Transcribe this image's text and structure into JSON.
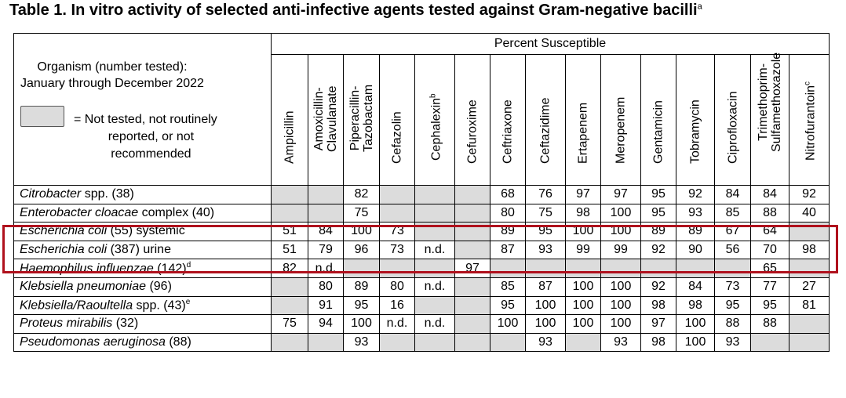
{
  "title": "Table 1.  In vitro activity of selected anti-infective agents tested against Gram-negative bacilli",
  "title_sup": "a",
  "header": {
    "percent_susceptible": "Percent Susceptible",
    "organism_line1": "Organism (number tested):",
    "organism_line2": "January through December 2022",
    "legend_line1": "= Not tested, not routinely",
    "legend_line2": "reported, or not",
    "legend_line3": "recommended"
  },
  "drugs": [
    {
      "line1": "Ampicillin"
    },
    {
      "line1": "Amoxicillin-",
      "line2": "Clavulanate"
    },
    {
      "line1": "Piperacillin-",
      "line2": "Tazobactam"
    },
    {
      "line1": "Cefazolin"
    },
    {
      "line1": "Cephalexin",
      "sup": "b"
    },
    {
      "line1": "Cefuroxime"
    },
    {
      "line1": "Ceftriaxone"
    },
    {
      "line1": "Ceftazidime"
    },
    {
      "line1": "Ertapenem"
    },
    {
      "line1": "Meropenem"
    },
    {
      "line1": "Gentamicin"
    },
    {
      "line1": "Tobramycin"
    },
    {
      "line1": "Ciprofloxacin"
    },
    {
      "line1": "Trimethoprim-",
      "line2": "Sulfamethoxazole"
    },
    {
      "line1": "Nitrofurantoin",
      "sup": "c"
    }
  ],
  "rows": [
    {
      "genus": "Citrobacter",
      "rest": " spp. (38)",
      "sup": "",
      "values": [
        "",
        "",
        "82",
        "",
        "",
        "",
        "68",
        "76",
        "97",
        "97",
        "95",
        "92",
        "84",
        "84",
        "92"
      ]
    },
    {
      "genus": "Enterobacter cloacae",
      "rest": " complex (40)",
      "sup": "",
      "values": [
        "",
        "",
        "75",
        "",
        "",
        "",
        "80",
        "75",
        "98",
        "100",
        "95",
        "93",
        "85",
        "88",
        "40"
      ]
    },
    {
      "genus": "Escherichia coli",
      "rest": " (55) systemic",
      "sup": "",
      "values": [
        "51",
        "84",
        "100",
        "73",
        "",
        "",
        "89",
        "95",
        "100",
        "100",
        "89",
        "89",
        "67",
        "64",
        ""
      ]
    },
    {
      "genus": "Escherichia coli",
      "rest": " (387) urine",
      "sup": "",
      "values": [
        "51",
        "79",
        "96",
        "73",
        "n.d.",
        "",
        "87",
        "93",
        "99",
        "99",
        "92",
        "90",
        "56",
        "70",
        "98"
      ]
    },
    {
      "genus": "Haemophilus influenzae",
      "rest": " (142)",
      "sup": "d",
      "values": [
        "82",
        "n.d.",
        "",
        "",
        "",
        "97",
        "",
        "",
        "",
        "",
        "",
        "",
        "",
        "65",
        ""
      ]
    },
    {
      "genus": "Klebsiella pneumoniae",
      "rest": " (96)",
      "sup": "",
      "values": [
        "",
        "80",
        "89",
        "80",
        "n.d.",
        "",
        "85",
        "87",
        "100",
        "100",
        "92",
        "84",
        "73",
        "77",
        "27"
      ]
    },
    {
      "genus": "Klebsiella/Raoultella",
      "rest": " spp. (43)",
      "sup": "e",
      "values": [
        "",
        "91",
        "95",
        "16",
        "",
        "",
        "95",
        "100",
        "100",
        "100",
        "98",
        "98",
        "95",
        "95",
        "81"
      ]
    },
    {
      "genus": "Proteus mirabilis",
      "rest": " (32)",
      "sup": "",
      "values": [
        "75",
        "94",
        "100",
        "n.d.",
        "n.d.",
        "",
        "100",
        "100",
        "100",
        "100",
        "97",
        "100",
        "88",
        "88",
        ""
      ]
    },
    {
      "genus": "Pseudomonas aeruginosa",
      "rest": " (88)",
      "sup": "",
      "values": [
        "",
        "",
        "93",
        "",
        "",
        "",
        "",
        "93",
        "",
        "93",
        "98",
        "100",
        "93",
        "",
        ""
      ]
    }
  ],
  "not_tested": [
    [
      0,
      1,
      3,
      4,
      5
    ],
    [
      0,
      1,
      3,
      4,
      5
    ],
    [
      4,
      5,
      14
    ],
    [
      5
    ],
    [
      2,
      3,
      4,
      6,
      7,
      8,
      9,
      10,
      11,
      12,
      14
    ],
    [
      0,
      5
    ],
    [
      0,
      4,
      5
    ],
    [
      5,
      14
    ],
    [
      0,
      1,
      3,
      4,
      5,
      6,
      8,
      13,
      14
    ]
  ],
  "colors": {
    "not_tested": "#dcdcdc",
    "highlight": "#b0111d"
  }
}
